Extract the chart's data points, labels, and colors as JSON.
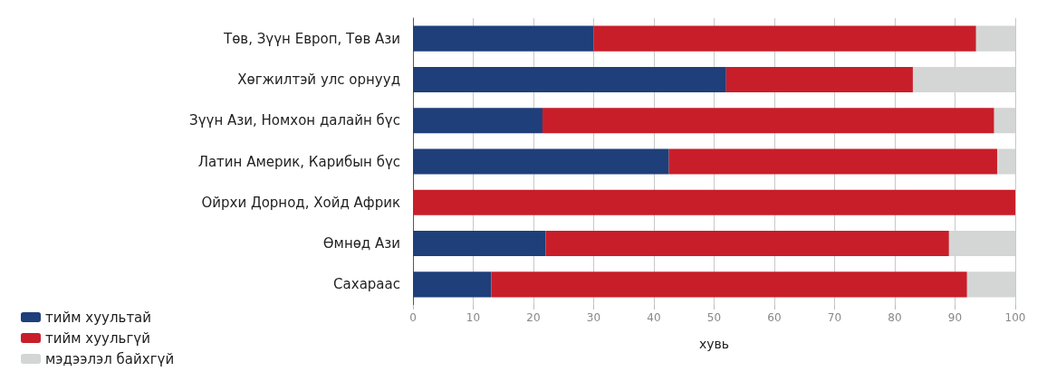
{
  "chart_data": {
    "type": "bar",
    "orientation": "horizontal",
    "stacked": true,
    "xlabel": "хувь",
    "categories": [
      "Төв, Зүүн Европ, Төв Ази",
      "Хөгжилтэй улс орнууд",
      "Зүүн Ази, Номхон далайн бүс",
      "Латин Америк, Карибын бүс",
      "Ойрхи Дорнод, Хойд Африк",
      "Өмнөд Ази",
      "Сахараас"
    ],
    "series": [
      {
        "name": "тийм хуультай",
        "color": "#1f3f7a",
        "values": [
          30,
          52,
          21.5,
          42.5,
          0,
          22,
          13
        ]
      },
      {
        "name": "тийм хуульгүй",
        "color": "#c81e2a",
        "values": [
          63.5,
          31,
          75,
          54.5,
          100,
          67,
          79
        ]
      },
      {
        "name": "мэдээлэл байхгүй",
        "color": "#d4d6d6",
        "values": [
          6.5,
          17,
          3.5,
          3,
          0,
          11,
          8
        ]
      }
    ],
    "xlim": [
      0,
      100
    ],
    "xticks": [
      0,
      10,
      20,
      30,
      40,
      50,
      60,
      70,
      80,
      90,
      100
    ],
    "grid": "x",
    "legend": "bottom left"
  }
}
